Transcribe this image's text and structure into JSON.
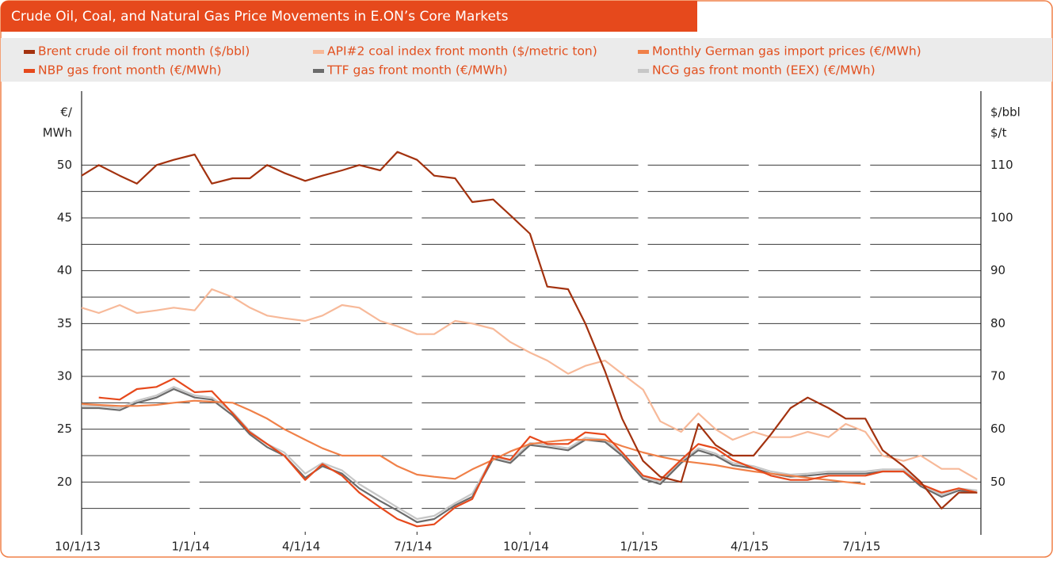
{
  "chart_data": {
    "type": "line",
    "title": "Crude Oil, Coal, and Natural Gas Price Movements in E.ON’s Core Markets",
    "ylabel_lines": [
      "€/",
      "MWh"
    ],
    "y2label_lines": [
      "$/bbl",
      "$/t"
    ],
    "x": [
      "10/1/13",
      "10/15/13",
      "11/1/13",
      "11/15/13",
      "12/1/13",
      "12/15/13",
      "1/1/14",
      "1/15/14",
      "2/1/14",
      "2/15/14",
      "3/1/14",
      "3/15/14",
      "4/1/14",
      "4/15/14",
      "5/1/14",
      "5/15/14",
      "6/1/14",
      "6/15/14",
      "7/1/14",
      "7/15/14",
      "8/1/14",
      "8/15/14",
      "9/1/14",
      "9/15/14",
      "10/1/14",
      "10/15/14",
      "11/1/14",
      "11/15/14",
      "12/1/14",
      "12/15/14",
      "1/1/15",
      "1/15/15",
      "2/1/15",
      "2/15/15",
      "3/1/15",
      "3/15/15",
      "4/1/15",
      "4/15/15",
      "5/1/15",
      "5/15/15",
      "6/1/15",
      "6/15/15",
      "7/1/15",
      "7/15/15",
      "8/1/15",
      "8/15/15",
      "9/1/15",
      "9/15/15",
      "9/30/15"
    ],
    "xlim": [
      "10/1/13",
      "10/3/15"
    ],
    "xticks": [
      "10/1/13",
      "1/1/14",
      "4/1/14",
      "7/1/14",
      "10/1/14",
      "1/1/15",
      "4/1/15",
      "7/1/15"
    ],
    "ylim": [
      15,
      57
    ],
    "yticks": [
      20,
      25,
      30,
      35,
      40,
      45,
      50
    ],
    "y2lim": [
      40,
      124
    ],
    "y2ticks": [
      50,
      60,
      70,
      80,
      90,
      100,
      110
    ],
    "grid": true,
    "series": [
      {
        "name": "Brent crude oil front month ($/bbl)",
        "color": "#a3320f",
        "axis": "y2",
        "values": [
          108,
          110,
          108,
          106.5,
          110,
          111,
          112,
          106.5,
          107.5,
          107.5,
          110,
          108.5,
          107,
          108,
          109,
          110,
          109,
          112.5,
          111,
          108,
          107.5,
          103,
          103.5,
          100.5,
          97,
          87,
          86.5,
          80,
          71,
          62,
          54,
          51,
          50,
          61,
          57,
          55,
          55,
          59,
          64,
          66,
          64,
          62,
          62,
          56,
          53,
          50,
          45,
          48,
          48
        ]
      },
      {
        "name": "API#2 coal index front month ($/metric ton)",
        "color": "#f7b999",
        "axis": "y2",
        "values": [
          83,
          82,
          83.5,
          82,
          82.5,
          83,
          82.5,
          86.5,
          85,
          83,
          81.5,
          81,
          80.5,
          81.5,
          83.5,
          83,
          80.5,
          79.5,
          78,
          78,
          80.5,
          80,
          79,
          76.5,
          74.5,
          73,
          70.5,
          72,
          73,
          70.5,
          67.5,
          61.5,
          59.5,
          63,
          60,
          58,
          59.5,
          58.5,
          58.5,
          59.5,
          58.5,
          61,
          59.5,
          55,
          54,
          55,
          52.5,
          52.5,
          50.5
        ]
      },
      {
        "name": "Monthly German gas import prices (€/MWh)",
        "color": "#f08048",
        "values": [
          27.4,
          27.3,
          27.2,
          27.2,
          27.3,
          27.5,
          27.7,
          27.6,
          27.5,
          26.8,
          26,
          25,
          24,
          23.2,
          22.5,
          22.5,
          22.5,
          21.5,
          20.7,
          20.5,
          20.3,
          21.2,
          22.1,
          22.9,
          23.6,
          23.8,
          24,
          24,
          24,
          23.4,
          22.8,
          22.4,
          22,
          21.8,
          21.6,
          21.3,
          21,
          20.8,
          20.6,
          20.4,
          20.2,
          20,
          19.8,
          null,
          null,
          null,
          null,
          null,
          null
        ]
      },
      {
        "name": "NBP gas front month (€/MWh)",
        "color": "#e6491c",
        "values": [
          null,
          28,
          27.8,
          28.8,
          29,
          29.8,
          28.5,
          28.6,
          26.5,
          24.7,
          23.6,
          22.5,
          20.2,
          21.7,
          20.6,
          19,
          17.6,
          16.5,
          15.8,
          16,
          17.6,
          18.4,
          22.5,
          22.1,
          24.3,
          23.6,
          23.6,
          24.7,
          24.5,
          22.8,
          20.6,
          20.2,
          22.1,
          23.6,
          23.2,
          22.1,
          21.3,
          20.6,
          20.2,
          20.2,
          20.6,
          20.6,
          20.6,
          21,
          21,
          19.8,
          19,
          19.4,
          19
        ]
      },
      {
        "name": "TTF gas front month (€/MWh)",
        "color": "#6b6b6b",
        "values": [
          27,
          27,
          26.8,
          27.5,
          28,
          28.8,
          28,
          27.8,
          26.3,
          24.5,
          23.3,
          22.5,
          20.4,
          21.5,
          20.8,
          19.4,
          18.2,
          17.3,
          16.2,
          16.5,
          17.8,
          18.6,
          22.2,
          21.8,
          23.5,
          23.3,
          23,
          24,
          23.8,
          22.5,
          20.3,
          19.8,
          21.8,
          23,
          22.5,
          21.6,
          21.3,
          20.8,
          20.5,
          20.6,
          20.8,
          20.8,
          20.8,
          21,
          21,
          19.6,
          18.6,
          19.2,
          19
        ]
      },
      {
        "name": "NCG gas front month (EEX) (€/MWh)",
        "color": "#c6c6c6",
        "values": [
          27.2,
          27.2,
          27,
          27.7,
          28.2,
          29,
          28.2,
          28,
          26.6,
          24.8,
          23.6,
          22.8,
          20.8,
          21.8,
          21.1,
          19.8,
          18.6,
          17.6,
          16.5,
          16.8,
          18,
          18.9,
          22.4,
          22,
          23.7,
          23.5,
          23.2,
          24.2,
          24,
          22.7,
          20.5,
          20,
          22,
          23.2,
          22.7,
          21.8,
          21.5,
          21,
          20.7,
          20.8,
          21,
          21,
          21,
          21.2,
          21.2,
          19.8,
          18.8,
          19.4,
          19.2
        ]
      }
    ]
  }
}
